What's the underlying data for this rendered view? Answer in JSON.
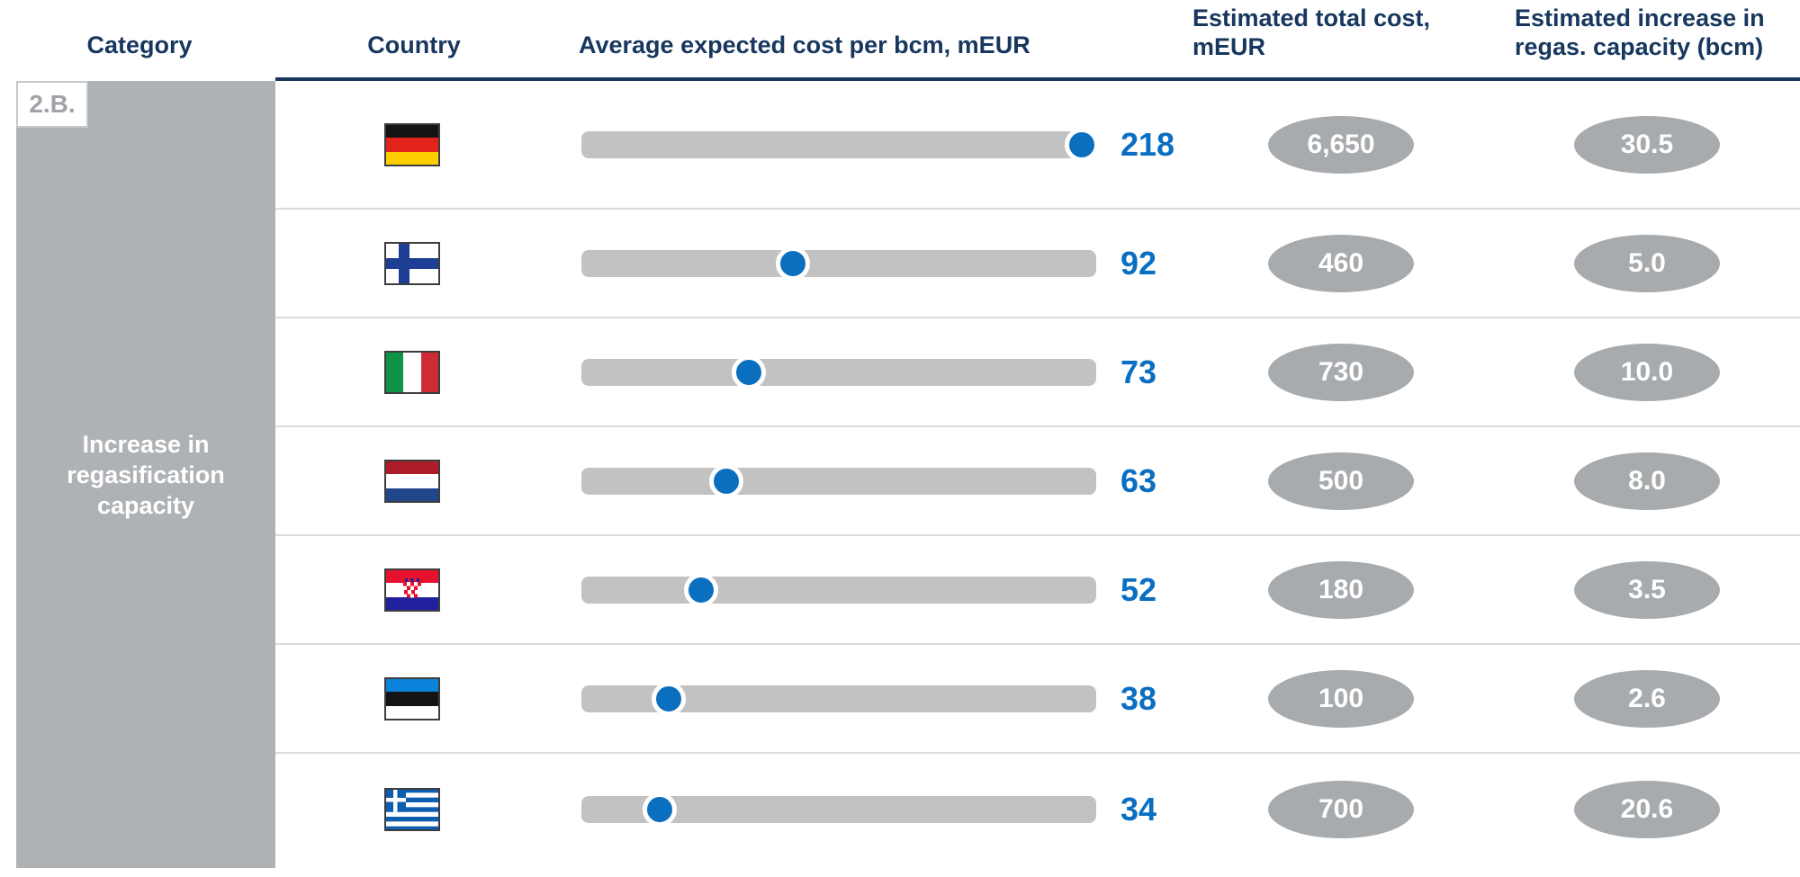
{
  "header": {
    "columns": [
      "Category",
      "Country",
      "Average expected cost per bcm, mEUR",
      "Estimated total cost, mEUR",
      "Estimated increase in regas. capacity (bcm)"
    ]
  },
  "sidebar": {
    "tag": "2.B.",
    "label": "Increase in regasification capacity"
  },
  "colors": {
    "navy_header": "#17375E",
    "value_blue": "#0A6FC2",
    "dot_blue": "#0B6FC0",
    "bar_gray": "#C2C2C2",
    "badge_gray": "#A8ABAE",
    "sidebar_gray": "#AFB2B5",
    "separator_gray": "#DBDBDB"
  },
  "chart_data": {
    "type": "table",
    "title": "",
    "category_tag": "2.B.",
    "category_label": "Increase in regasification capacity",
    "columns": [
      "Category",
      "Country",
      "Average expected cost per bcm, mEUR",
      "Estimated total cost, mEUR",
      "Estimated increase in regas. capacity (bcm)"
    ],
    "dot_axis": {
      "min": 0,
      "max": 218,
      "series": "Average expected cost per bcm, mEUR"
    },
    "rows": [
      {
        "country": "Germany",
        "flag": "germany",
        "avg_cost_per_bcm": 218,
        "avg_cost_display": "218",
        "total_cost_meur": 6650,
        "total_cost_display": "6,650",
        "regas_increase_bcm": 30.5,
        "regas_increase_display": "30.5"
      },
      {
        "country": "Finland",
        "flag": "finland",
        "avg_cost_per_bcm": 92,
        "avg_cost_display": "92",
        "total_cost_meur": 460,
        "total_cost_display": "460",
        "regas_increase_bcm": 5.0,
        "regas_increase_display": "5.0"
      },
      {
        "country": "Italy",
        "flag": "italy",
        "avg_cost_per_bcm": 73,
        "avg_cost_display": "73",
        "total_cost_meur": 730,
        "total_cost_display": "730",
        "regas_increase_bcm": 10.0,
        "regas_increase_display": "10.0"
      },
      {
        "country": "Netherlands",
        "flag": "netherlands",
        "avg_cost_per_bcm": 63,
        "avg_cost_display": "63",
        "total_cost_meur": 500,
        "total_cost_display": "500",
        "regas_increase_bcm": 8.0,
        "regas_increase_display": "8.0"
      },
      {
        "country": "Croatia",
        "flag": "croatia",
        "avg_cost_per_bcm": 52,
        "avg_cost_display": "52",
        "total_cost_meur": 180,
        "total_cost_display": "180",
        "regas_increase_bcm": 3.5,
        "regas_increase_display": "3.5"
      },
      {
        "country": "Estonia",
        "flag": "estonia",
        "avg_cost_per_bcm": 38,
        "avg_cost_display": "38",
        "total_cost_meur": 100,
        "total_cost_display": "100",
        "regas_increase_bcm": 2.6,
        "regas_increase_display": "2.6"
      },
      {
        "country": "Greece",
        "flag": "greece",
        "avg_cost_per_bcm": 34,
        "avg_cost_display": "34",
        "total_cost_meur": 700,
        "total_cost_display": "700",
        "regas_increase_bcm": 20.6,
        "regas_increase_display": "20.6"
      }
    ]
  }
}
